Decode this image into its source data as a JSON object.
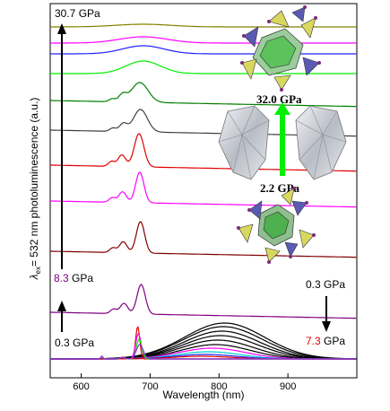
{
  "chart_data": {
    "type": "line",
    "xlabel": "Wavelength (nm)",
    "ylabel": "λex = 532 nm photoluminescence (a.u.)",
    "ylabel_main": "= 532 nm photoluminescence (a.u.)",
    "ylabel_symbol": "λ",
    "ylabel_subscript": "ex",
    "xlim": [
      555,
      1000
    ],
    "x_ticks": [
      "600",
      "700",
      "800",
      "900"
    ],
    "x_tick_values": [
      600,
      700,
      800,
      900
    ],
    "y_ticks_shown": false,
    "grid": false,
    "annotations": {
      "top_pressure": "30.7 GPa",
      "mid_pressure_value": "8.3",
      "mid_pressure_unit": " GPa",
      "low_pressure": "0.3 GPa",
      "right_low_pressure": "0.3 GPa",
      "right_pressure_value": "7.3",
      "right_pressure_unit": " GPa",
      "inset_upper": "32.0 GPa",
      "inset_lower": "2.2 GPa"
    },
    "colors": {
      "red_value": "#e00000",
      "purple_value": "#800080",
      "green_arrow": "#00ee00"
    },
    "series": [
      {
        "color": "#000000",
        "kind": "broad",
        "values": {
          "offset": 0,
          "A": 40,
          "center": 808,
          "sigma": 58
        }
      },
      {
        "color": "#000000",
        "kind": "broad",
        "values": {
          "offset": 0,
          "A": 36,
          "center": 806,
          "sigma": 57
        }
      },
      {
        "color": "#000000",
        "kind": "broad",
        "values": {
          "offset": 0,
          "A": 31,
          "center": 804,
          "sigma": 55
        }
      },
      {
        "color": "#000000",
        "kind": "broad",
        "values": {
          "offset": 0,
          "A": 26,
          "center": 802,
          "sigma": 54
        }
      },
      {
        "color": "#000000",
        "kind": "broad",
        "values": {
          "offset": 0,
          "A": 21,
          "center": 798,
          "sigma": 52
        }
      },
      {
        "color": "#000000",
        "kind": "broad",
        "values": {
          "offset": 0,
          "A": 16,
          "center": 795,
          "sigma": 50
        }
      },
      {
        "color": "#ff00ff",
        "kind": "broad",
        "values": {
          "offset": 0,
          "A": 12,
          "center": 790,
          "sigma": 48
        }
      },
      {
        "color": "#00cccc",
        "kind": "broad",
        "values": {
          "offset": 0,
          "A": 8,
          "center": 785,
          "sigma": 46
        }
      },
      {
        "color": "#2020ff",
        "kind": "broad",
        "values": {
          "offset": 0,
          "A": 5,
          "center": 780,
          "sigma": 44
        }
      },
      {
        "color": "#e00000",
        "kind": "broad",
        "values": {
          "offset": 0,
          "A": 3,
          "center": 775,
          "sigma": 42
        }
      },
      {
        "color": "#e00000",
        "kind": "sharp",
        "values": {
          "offset": 0,
          "A": 36,
          "center": 682,
          "sigma": 3
        }
      },
      {
        "color": "#ff00ff",
        "kind": "sharp",
        "values": {
          "offset": 0,
          "A": 28,
          "center": 683,
          "sigma": 4
        }
      },
      {
        "color": "#00ee00",
        "kind": "sharp",
        "values": {
          "offset": 0,
          "A": 22,
          "center": 684,
          "sigma": 4
        }
      },
      {
        "color": "#8a2be2",
        "kind": "sharp",
        "values": {
          "offset": 0,
          "A": 16,
          "center": 685,
          "sigma": 5
        }
      },
      {
        "color": "#800080",
        "kind": "narrow",
        "values": {
          "offset": 52,
          "A": 33,
          "center": 687,
          "sigma": 6
        }
      },
      {
        "color": "#800000",
        "kind": "narrow",
        "values": {
          "offset": 120,
          "A": 35,
          "center": 686,
          "sigma": 6
        }
      },
      {
        "color": "#ff00ff",
        "kind": "narrow",
        "values": {
          "offset": 176,
          "A": 34,
          "center": 685,
          "sigma": 6
        }
      },
      {
        "color": "#e00000",
        "kind": "narrow",
        "values": {
          "offset": 216,
          "A": 37,
          "center": 684,
          "sigma": 7
        }
      },
      {
        "color": "#404040",
        "kind": "medium",
        "values": {
          "offset": 255,
          "A": 25,
          "center": 686,
          "sigma": 10
        }
      },
      {
        "color": "#008000",
        "kind": "medium",
        "values": {
          "offset": 288,
          "A": 22,
          "center": 685,
          "sigma": 12
        }
      },
      {
        "color": "#00ee00",
        "kind": "wide",
        "values": {
          "offset": 318,
          "A": 14,
          "center": 690,
          "sigma": 25
        }
      },
      {
        "color": "#2020ff",
        "kind": "wide",
        "values": {
          "offset": 340,
          "A": 9,
          "center": 690,
          "sigma": 30
        }
      },
      {
        "color": "#ff00ff",
        "kind": "wide",
        "values": {
          "offset": 352,
          "A": 7,
          "center": 690,
          "sigma": 35
        }
      },
      {
        "color": "#808000",
        "kind": "flat",
        "values": {
          "offset": 370,
          "A": 3,
          "center": 690,
          "sigma": 40
        }
      }
    ]
  }
}
